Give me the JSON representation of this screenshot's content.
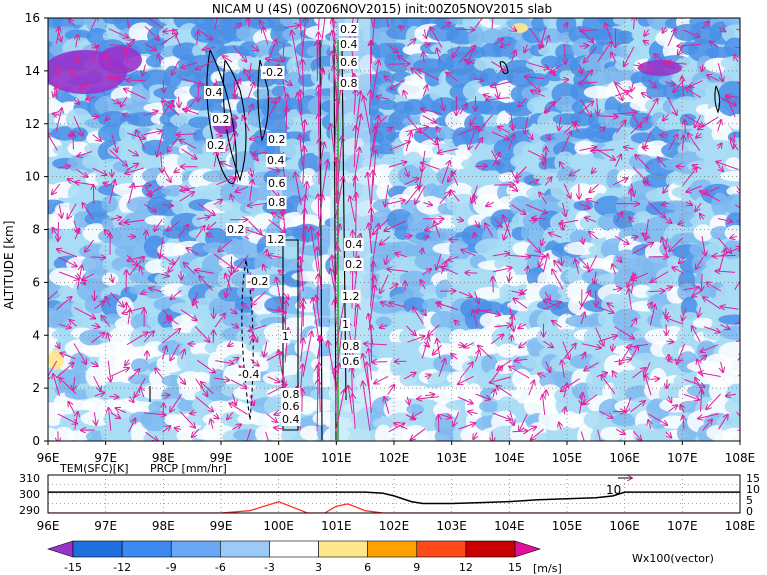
{
  "title": "NICAM U (4S) (00Z06NOV2015) init:00Z05NOV2015 slab",
  "chart_data": [
    {
      "type": "heatmap",
      "title": "NICAM U (4S) (00Z06NOV2015) init:00Z05NOV2015 slab",
      "xlabel": "",
      "ylabel": "ALTITUDE [km]",
      "xlim": [
        96,
        108
      ],
      "ylim": [
        0,
        16
      ],
      "x_ticks": [
        "96E",
        "97E",
        "98E",
        "99E",
        "100E",
        "101E",
        "102E",
        "103E",
        "104E",
        "105E",
        "106E",
        "107E",
        "108E"
      ],
      "y_ticks": [
        "0",
        "2",
        "4",
        "6",
        "8",
        "10",
        "12",
        "14",
        "16"
      ],
      "contour_labels": [
        "0.2",
        "0.4",
        "0.6",
        "0.8",
        "1",
        "1.2",
        "-0.2",
        "-0.4"
      ],
      "grid": true,
      "overlays": [
        "wind vectors (magenta)",
        "vertical velocity contours (black)"
      ]
    },
    {
      "type": "line",
      "left_label": "TEM(SFC)[K]",
      "right_label": "PRCP [mm/hr]",
      "left_ticks": [
        "310",
        "300",
        "290"
      ],
      "right_ticks": [
        "15",
        "10",
        "5",
        "0"
      ],
      "marker_text": "10",
      "x": [
        96,
        97,
        98,
        99,
        99.5,
        100,
        100.5,
        100.8,
        101,
        101.2,
        101.5,
        101.8,
        102,
        102.3,
        102.5,
        103,
        103.5,
        104,
        104.5,
        105,
        105.5,
        105.8,
        106,
        106.5,
        107,
        108
      ],
      "series": [
        {
          "values": [
            301,
            301,
            301,
            301,
            301,
            301,
            301,
            301,
            301,
            301,
            301,
            300.5,
            299,
            296,
            295,
            295,
            295.5,
            296,
            297,
            297.5,
            298,
            299,
            301,
            301,
            301,
            301
          ]
        },
        {
          "values": [
            0,
            0,
            0,
            0,
            1,
            5,
            0,
            0,
            3,
            4,
            1,
            0,
            0,
            0,
            0,
            0,
            0,
            0,
            0,
            0,
            0,
            0,
            0,
            0,
            0,
            0
          ]
        }
      ],
      "ylim": [
        290,
        310
      ]
    }
  ],
  "colorbar": {
    "ticks": [
      "-15",
      "-12",
      "-9",
      "-6",
      "-3",
      "3",
      "6",
      "9",
      "12",
      "15"
    ],
    "unit": "[m/s]",
    "colors": [
      "#9933cc",
      "#1e6fe0",
      "#3c8af0",
      "#6aa7f4",
      "#9ccaf8",
      "#ffffff",
      "#ffe88a",
      "#ffa200",
      "#ff4a1a",
      "#c80000",
      "#e0109a"
    ],
    "vector_label": "Wx100(vector)"
  },
  "palette": {
    "vector": "#e0209a",
    "precip": "#ff3030",
    "green": "#22aa22",
    "field_background": "#a9dcf5",
    "field_blue": "#4a8fe8",
    "field_light": "#ffffff"
  }
}
